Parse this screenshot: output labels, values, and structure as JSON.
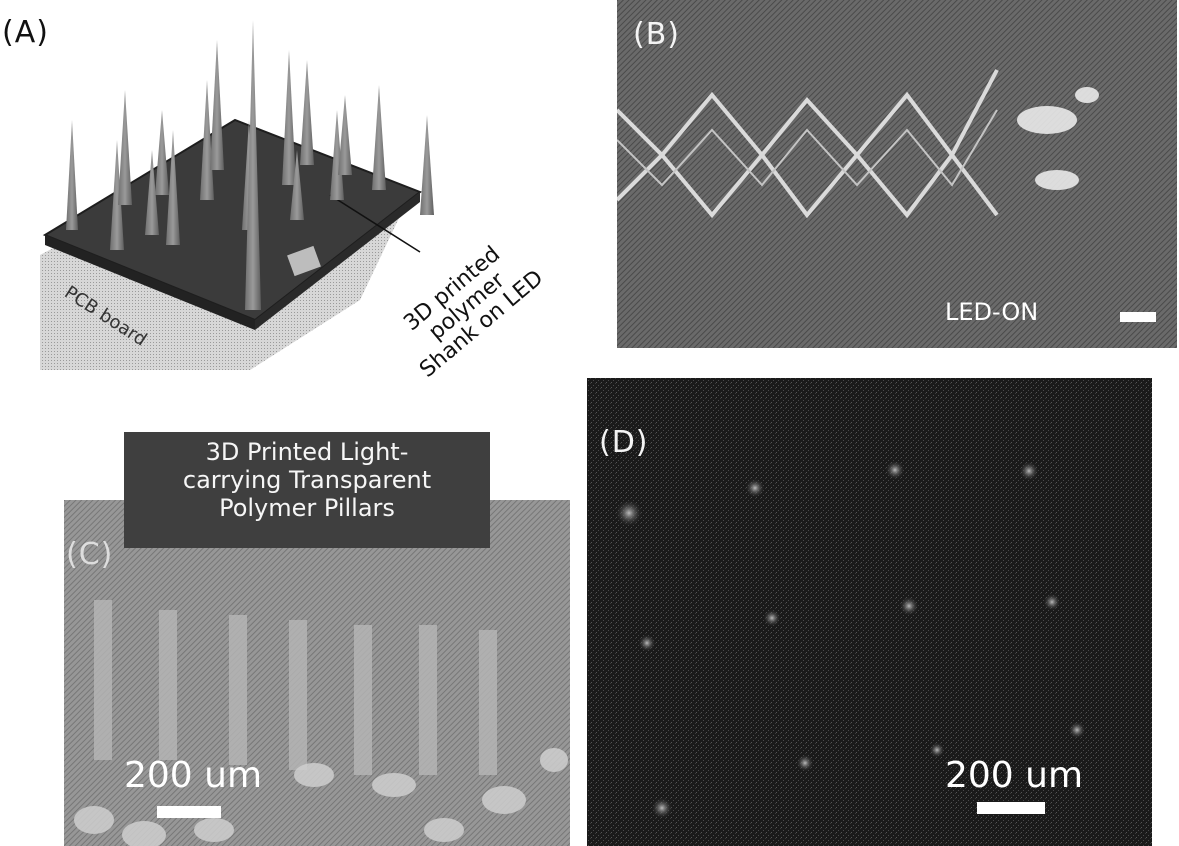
{
  "panelA": {
    "label": "(A)",
    "pcb_label": "PCB board",
    "shank_text": [
      "3D printed",
      "polymer",
      "Shank on LED"
    ]
  },
  "panelB": {
    "label": "(B)",
    "led_label": "LED-ON"
  },
  "panelC": {
    "label": "(C)",
    "caption": [
      "3D Printed Light-",
      "carrying Transparent",
      "Polymer Pillars"
    ],
    "scale_text": "200 um"
  },
  "panelD": {
    "label": "(D)",
    "scale_text": "200 um"
  }
}
